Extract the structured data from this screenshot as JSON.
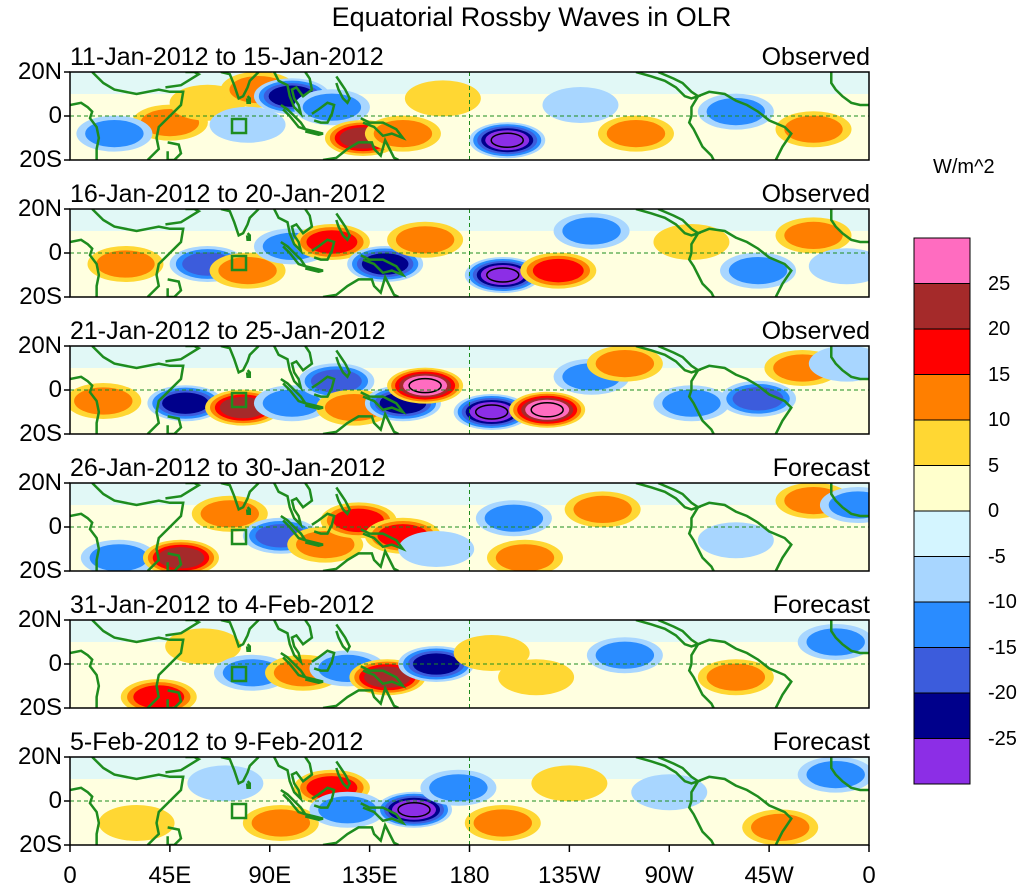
{
  "title": "Equatorial Rossby Waves in OLR",
  "units": "W/m^2",
  "y_axis_labels": [
    "20N",
    "0",
    "20S"
  ],
  "x_axis_labels": [
    "0",
    "45E",
    "90E",
    "135E",
    "180",
    "135W",
    "90W",
    "45W",
    "0"
  ],
  "panels": [
    {
      "date_range": "11-Jan-2012 to 15-Jan-2012",
      "type": "Observed"
    },
    {
      "date_range": "16-Jan-2012 to 20-Jan-2012",
      "type": "Observed"
    },
    {
      "date_range": "21-Jan-2012 to 25-Jan-2012",
      "type": "Observed"
    },
    {
      "date_range": "26-Jan-2012 to 30-Jan-2012",
      "type": "Forecast"
    },
    {
      "date_range": "31-Jan-2012 to 4-Feb-2012",
      "type": "Forecast"
    },
    {
      "date_range": "5-Feb-2012 to 9-Feb-2012",
      "type": "Forecast"
    }
  ],
  "colorbar": {
    "labels": [
      "25",
      "20",
      "15",
      "10",
      "5",
      "0",
      "-5",
      "-10",
      "-15",
      "-20",
      "-25"
    ],
    "colors": [
      "#ff6cc0",
      "#a52a2a",
      "#ff0000",
      "#ff7f00",
      "#ffd733",
      "#ffffcc",
      "#d4f5ff",
      "#a8d6ff",
      "#2a8cff",
      "#3c5cdc",
      "#00008b",
      "#8c2ee6"
    ]
  },
  "map_colors": {
    "coast": "#1e8c1e",
    "equator": "#1e8c1e",
    "frame": "#000000"
  },
  "map_data": {
    "panels": [
      {
        "anomalies": [
          {
            "lon": 45,
            "lat": -3,
            "v": 12
          },
          {
            "lon": 62,
            "lat": 6,
            "v": 8
          },
          {
            "lon": 85,
            "lat": 12,
            "v": 10
          },
          {
            "lon": 100,
            "lat": 9,
            "v": -20
          },
          {
            "lon": 118,
            "lat": 4,
            "v": -10
          },
          {
            "lon": 132,
            "lat": -10,
            "v": 22
          },
          {
            "lon": 150,
            "lat": -8,
            "v": 10
          },
          {
            "lon": 168,
            "lat": 8,
            "v": 6
          },
          {
            "lon": 197,
            "lat": -11,
            "v": -27
          },
          {
            "lon": 230,
            "lat": 5,
            "v": -8
          },
          {
            "lon": 255,
            "lat": -8,
            "v": 12
          },
          {
            "lon": 300,
            "lat": 2,
            "v": -10
          },
          {
            "lon": 335,
            "lat": -6,
            "v": 10
          },
          {
            "lon": 20,
            "lat": -8,
            "v": -12
          },
          {
            "lon": 80,
            "lat": -4,
            "v": -8
          }
        ]
      },
      {
        "anomalies": [
          {
            "lon": 25,
            "lat": -5,
            "v": 10
          },
          {
            "lon": 62,
            "lat": -5,
            "v": -16
          },
          {
            "lon": 80,
            "lat": -8,
            "v": 12
          },
          {
            "lon": 100,
            "lat": 3,
            "v": -10
          },
          {
            "lon": 118,
            "lat": 5,
            "v": 15
          },
          {
            "lon": 142,
            "lat": -5,
            "v": -20
          },
          {
            "lon": 160,
            "lat": 6,
            "v": 14
          },
          {
            "lon": 195,
            "lat": -10,
            "v": -27
          },
          {
            "lon": 220,
            "lat": -8,
            "v": 18
          },
          {
            "lon": 235,
            "lat": 10,
            "v": -10
          },
          {
            "lon": 280,
            "lat": 5,
            "v": 8
          },
          {
            "lon": 310,
            "lat": -8,
            "v": -12
          },
          {
            "lon": 335,
            "lat": 8,
            "v": 12
          },
          {
            "lon": 350,
            "lat": -6,
            "v": -8
          }
        ]
      },
      {
        "anomalies": [
          {
            "lon": 15,
            "lat": -5,
            "v": 10
          },
          {
            "lon": 52,
            "lat": -6,
            "v": -20
          },
          {
            "lon": 78,
            "lat": -8,
            "v": 22
          },
          {
            "lon": 100,
            "lat": -6,
            "v": -14
          },
          {
            "lon": 120,
            "lat": 4,
            "v": -16
          },
          {
            "lon": 128,
            "lat": -8,
            "v": 12
          },
          {
            "lon": 150,
            "lat": -6,
            "v": -20
          },
          {
            "lon": 160,
            "lat": 2,
            "v": 26
          },
          {
            "lon": 190,
            "lat": -10,
            "v": -27
          },
          {
            "lon": 215,
            "lat": -9,
            "v": 26
          },
          {
            "lon": 235,
            "lat": 6,
            "v": -10
          },
          {
            "lon": 250,
            "lat": 12,
            "v": 10
          },
          {
            "lon": 280,
            "lat": -6,
            "v": -12
          },
          {
            "lon": 310,
            "lat": -4,
            "v": -15
          },
          {
            "lon": 330,
            "lat": 10,
            "v": 14
          },
          {
            "lon": 350,
            "lat": 12,
            "v": -8
          }
        ]
      },
      {
        "anomalies": [
          {
            "lon": 22,
            "lat": -14,
            "v": -14
          },
          {
            "lon": 50,
            "lat": -14,
            "v": 20
          },
          {
            "lon": 72,
            "lat": 6,
            "v": 10
          },
          {
            "lon": 95,
            "lat": -4,
            "v": -18
          },
          {
            "lon": 115,
            "lat": -8,
            "v": 12
          },
          {
            "lon": 130,
            "lat": 3,
            "v": 18
          },
          {
            "lon": 150,
            "lat": -4,
            "v": 16
          },
          {
            "lon": 165,
            "lat": -10,
            "v": -8
          },
          {
            "lon": 200,
            "lat": 4,
            "v": -12
          },
          {
            "lon": 205,
            "lat": -14,
            "v": 14
          },
          {
            "lon": 240,
            "lat": 8,
            "v": 10
          },
          {
            "lon": 300,
            "lat": -6,
            "v": -8
          },
          {
            "lon": 335,
            "lat": 12,
            "v": 12
          },
          {
            "lon": 355,
            "lat": 10,
            "v": -10
          }
        ]
      },
      {
        "anomalies": [
          {
            "lon": 40,
            "lat": -15,
            "v": 18
          },
          {
            "lon": 60,
            "lat": 8,
            "v": 8
          },
          {
            "lon": 82,
            "lat": -4,
            "v": -12
          },
          {
            "lon": 105,
            "lat": -4,
            "v": 14
          },
          {
            "lon": 125,
            "lat": -2,
            "v": -12
          },
          {
            "lon": 143,
            "lat": -6,
            "v": 24
          },
          {
            "lon": 165,
            "lat": 0,
            "v": -20
          },
          {
            "lon": 190,
            "lat": 5,
            "v": 8
          },
          {
            "lon": 210,
            "lat": -6,
            "v": 6
          },
          {
            "lon": 250,
            "lat": 4,
            "v": -10
          },
          {
            "lon": 300,
            "lat": -6,
            "v": 10
          },
          {
            "lon": 345,
            "lat": 10,
            "v": -14
          }
        ]
      },
      {
        "anomalies": [
          {
            "lon": 30,
            "lat": -10,
            "v": 8
          },
          {
            "lon": 70,
            "lat": 8,
            "v": -8
          },
          {
            "lon": 95,
            "lat": -10,
            "v": 10
          },
          {
            "lon": 118,
            "lat": 6,
            "v": 16
          },
          {
            "lon": 125,
            "lat": -4,
            "v": -10
          },
          {
            "lon": 155,
            "lat": -4,
            "v": -26
          },
          {
            "lon": 175,
            "lat": 6,
            "v": -10
          },
          {
            "lon": 195,
            "lat": -10,
            "v": 12
          },
          {
            "lon": 225,
            "lat": 8,
            "v": 6
          },
          {
            "lon": 270,
            "lat": 4,
            "v": -8
          },
          {
            "lon": 320,
            "lat": -12,
            "v": 14
          },
          {
            "lon": 345,
            "lat": 12,
            "v": -12
          }
        ]
      }
    ]
  }
}
